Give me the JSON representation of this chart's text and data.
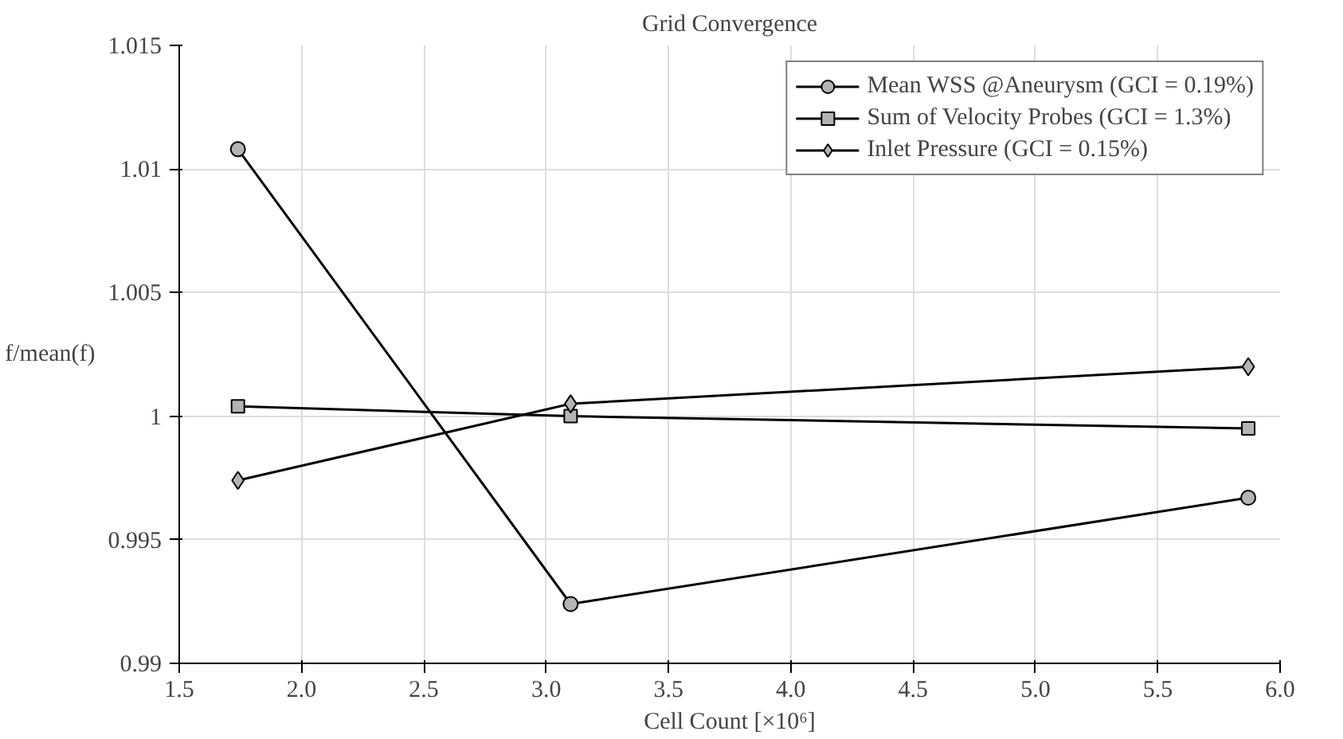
{
  "chart_data": {
    "type": "line",
    "title": "Grid Convergence",
    "xlabel": "Cell Count [×10⁶]",
    "ylabel": "f/mean(f)",
    "x": [
      1.74,
      3.1,
      5.87
    ],
    "series": [
      {
        "name": "Mean WSS @Aneurysm (GCI = 0.19%)",
        "color": "#000000",
        "marker": "circle",
        "values": [
          1.0108,
          0.9924,
          0.9967
        ]
      },
      {
        "name": "Sum of Velocity Probes (GCI = 1.3%)",
        "color": "#000000",
        "marker": "square",
        "values": [
          1.0004,
          1.0,
          0.9995
        ]
      },
      {
        "name": "Inlet Pressure (GCI = 0.15%)",
        "color": "#000000",
        "marker": "diamond",
        "values": [
          0.9974,
          1.0005,
          1.002
        ]
      }
    ],
    "xlim": [
      1.5,
      6.0
    ],
    "ylim": [
      0.99,
      1.015
    ],
    "xticks": [
      1.5,
      {
        "value": 2,
        "label": "2.0"
      },
      2.5,
      {
        "value": 3,
        "label": "3.0"
      },
      3.5,
      {
        "value": 4,
        "label": "4.0"
      },
      4.5,
      {
        "value": 5,
        "label": "5.0"
      },
      5.5,
      {
        "value": 6,
        "label": "6.0"
      }
    ],
    "yticks": [
      0.99,
      0.995,
      1,
      1.005,
      1.01,
      1.015
    ],
    "grid": true,
    "legend": "top right",
    "line_style": "solid"
  }
}
